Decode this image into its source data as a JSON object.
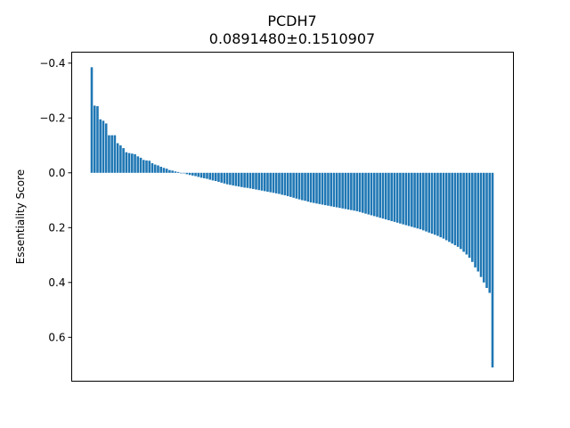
{
  "chart_data": {
    "type": "bar",
    "title": "PCDH7",
    "subtitle": "0.0891480±0.1510907",
    "xlabel": "",
    "ylabel": "Essentiality Score",
    "ylim": [
      -0.44,
      0.76
    ],
    "y_inverted": true,
    "yticks": [
      -0.4,
      -0.2,
      0.0,
      0.2,
      0.4,
      0.6
    ],
    "ytick_labels": [
      "−0.4",
      "−0.2",
      "0.0",
      "0.2",
      "0.4",
      "0.6"
    ],
    "grid": false,
    "legend": "none",
    "color": "#1f77b4",
    "values": [
      -0.385,
      -0.245,
      -0.243,
      -0.195,
      -0.19,
      -0.18,
      -0.137,
      -0.137,
      -0.137,
      -0.108,
      -0.1,
      -0.09,
      -0.075,
      -0.072,
      -0.07,
      -0.068,
      -0.06,
      -0.055,
      -0.047,
      -0.045,
      -0.044,
      -0.035,
      -0.03,
      -0.027,
      -0.022,
      -0.018,
      -0.015,
      -0.01,
      -0.008,
      -0.005,
      -0.003,
      0.0,
      0.002,
      0.005,
      0.008,
      0.01,
      0.012,
      0.015,
      0.018,
      0.02,
      0.022,
      0.025,
      0.028,
      0.03,
      0.033,
      0.036,
      0.039,
      0.042,
      0.044,
      0.046,
      0.048,
      0.05,
      0.052,
      0.054,
      0.055,
      0.057,
      0.059,
      0.061,
      0.063,
      0.065,
      0.067,
      0.069,
      0.071,
      0.073,
      0.075,
      0.077,
      0.08,
      0.082,
      0.085,
      0.088,
      0.091,
      0.094,
      0.097,
      0.1,
      0.102,
      0.105,
      0.108,
      0.11,
      0.112,
      0.114,
      0.116,
      0.118,
      0.12,
      0.122,
      0.124,
      0.126,
      0.128,
      0.13,
      0.132,
      0.134,
      0.136,
      0.138,
      0.14,
      0.143,
      0.146,
      0.149,
      0.152,
      0.155,
      0.158,
      0.161,
      0.164,
      0.167,
      0.17,
      0.173,
      0.176,
      0.179,
      0.182,
      0.185,
      0.188,
      0.191,
      0.194,
      0.197,
      0.2,
      0.203,
      0.206,
      0.21,
      0.214,
      0.218,
      0.222,
      0.226,
      0.23,
      0.235,
      0.24,
      0.246,
      0.252,
      0.258,
      0.264,
      0.27,
      0.278,
      0.288,
      0.298,
      0.31,
      0.325,
      0.345,
      0.36,
      0.38,
      0.4,
      0.42,
      0.438,
      0.71
    ]
  }
}
